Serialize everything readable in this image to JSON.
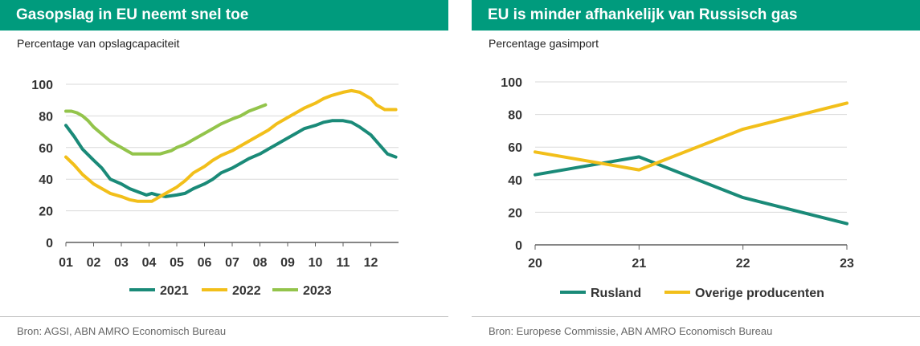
{
  "panels": {
    "left": {
      "title": "Gasopslag in EU neemt snel toe",
      "subtitle": "Percentage van opslagcapaciteit",
      "source": "Bron: AGSI, ABN AMRO Economisch Bureau"
    },
    "right": {
      "title": "EU is minder afhankelijk van Russisch gas",
      "subtitle": "Percentage gasimport",
      "source": "Bron: Europese Commissie, ABN AMRO Economisch Bureau"
    }
  },
  "colors": {
    "title_bar": "#009b7d",
    "teal": "#1a8a78",
    "yellow": "#f2bf1a",
    "green": "#93c44b",
    "grid": "#d9d9d9",
    "axis": "#5f5f5f"
  },
  "chart_data": [
    {
      "type": "line",
      "x_ticks": [
        "01",
        "02",
        "03",
        "04",
        "05",
        "06",
        "07",
        "08",
        "09",
        "10",
        "11",
        "12"
      ],
      "xlim": [
        1,
        13
      ],
      "ylim": [
        0,
        100
      ],
      "y_ticks": [
        0,
        20,
        40,
        60,
        80,
        100
      ],
      "grid": true,
      "legend_position": "bottom",
      "series": [
        {
          "name": "2021",
          "color": "#1a8a78",
          "x": [
            1.0,
            1.3,
            1.6,
            2.0,
            2.3,
            2.6,
            3.0,
            3.3,
            3.6,
            3.9,
            4.1,
            4.3,
            4.6,
            5.0,
            5.3,
            5.6,
            6.0,
            6.3,
            6.6,
            7.0,
            7.3,
            7.6,
            8.0,
            8.3,
            8.6,
            9.0,
            9.3,
            9.6,
            10.0,
            10.3,
            10.6,
            11.0,
            11.3,
            11.6,
            12.0,
            12.3,
            12.6,
            12.9
          ],
          "y": [
            74,
            67,
            59,
            52,
            47,
            40,
            37,
            34,
            32,
            30,
            31,
            30,
            29,
            30,
            31,
            34,
            37,
            40,
            44,
            47,
            50,
            53,
            56,
            59,
            62,
            66,
            69,
            72,
            74,
            76,
            77,
            77,
            76,
            73,
            68,
            62,
            56,
            54
          ]
        },
        {
          "name": "2022",
          "color": "#f2bf1a",
          "x": [
            1.0,
            1.3,
            1.6,
            2.0,
            2.3,
            2.6,
            3.0,
            3.3,
            3.6,
            3.9,
            4.1,
            4.3,
            4.6,
            5.0,
            5.3,
            5.6,
            6.0,
            6.3,
            6.6,
            7.0,
            7.3,
            7.6,
            8.0,
            8.3,
            8.6,
            9.0,
            9.3,
            9.6,
            10.0,
            10.3,
            10.6,
            11.0,
            11.3,
            11.6,
            12.0,
            12.2,
            12.5,
            12.9
          ],
          "y": [
            54,
            49,
            43,
            37,
            34,
            31,
            29,
            27,
            26,
            26,
            26,
            28,
            31,
            35,
            39,
            44,
            48,
            52,
            55,
            58,
            61,
            64,
            68,
            71,
            75,
            79,
            82,
            85,
            88,
            91,
            93,
            95,
            96,
            95,
            91,
            87,
            84,
            84
          ]
        },
        {
          "name": "2023",
          "color": "#93c44b",
          "x": [
            1.0,
            1.2,
            1.4,
            1.6,
            1.8,
            2.0,
            2.2,
            2.4,
            2.6,
            2.8,
            3.0,
            3.2,
            3.4,
            3.6,
            3.8,
            4.0,
            4.2,
            4.4,
            4.6,
            4.8,
            5.0,
            5.3,
            5.6,
            6.0,
            6.3,
            6.6,
            7.0,
            7.3,
            7.6,
            7.9,
            8.2
          ],
          "y": [
            83,
            83,
            82,
            80,
            77,
            73,
            70,
            67,
            64,
            62,
            60,
            58,
            56,
            56,
            56,
            56,
            56,
            56,
            57,
            58,
            60,
            62,
            65,
            69,
            72,
            75,
            78,
            80,
            83,
            85,
            87
          ]
        }
      ]
    },
    {
      "type": "line",
      "x": [
        "20",
        "21",
        "22",
        "23"
      ],
      "ylim": [
        0,
        100
      ],
      "y_ticks": [
        0,
        20,
        40,
        60,
        80,
        100
      ],
      "grid": true,
      "legend_position": "bottom",
      "series": [
        {
          "name": "Rusland",
          "color": "#1a8a78",
          "values": [
            43,
            54,
            29,
            13
          ]
        },
        {
          "name": "Overige producenten",
          "color": "#f2bf1a",
          "values": [
            57,
            46,
            71,
            87
          ]
        }
      ]
    }
  ]
}
